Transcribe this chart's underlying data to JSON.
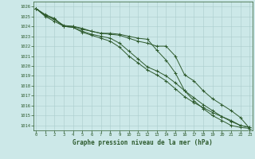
{
  "xlabel": "Graphe pression niveau de la mer (hPa)",
  "bg_color": "#cce8e8",
  "line_color": "#2d5a2d",
  "grid_color": "#aacccc",
  "ylim": [
    1013.5,
    1026.5
  ],
  "xlim": [
    -0.3,
    23.3
  ],
  "yticks": [
    1014,
    1015,
    1016,
    1017,
    1018,
    1019,
    1020,
    1021,
    1022,
    1023,
    1024,
    1025,
    1026
  ],
  "xticks": [
    0,
    1,
    2,
    3,
    4,
    5,
    6,
    7,
    8,
    9,
    10,
    11,
    12,
    13,
    14,
    15,
    16,
    17,
    18,
    19,
    20,
    21,
    22,
    23
  ],
  "series": [
    [
      1025.8,
      1025.2,
      1024.8,
      1024.0,
      1024.0,
      1023.8,
      1023.5,
      1023.3,
      1023.2,
      1023.1,
      1022.8,
      1022.5,
      1022.3,
      1022.0,
      1022.0,
      1021.0,
      1019.1,
      1018.5,
      1017.5,
      1016.7,
      1016.1,
      1015.5,
      1014.8,
      1013.7
    ],
    [
      1025.8,
      1025.1,
      1024.7,
      1024.0,
      1023.9,
      1023.5,
      1023.2,
      1023.0,
      1022.8,
      1022.3,
      1021.5,
      1020.7,
      1019.9,
      1019.5,
      1019.0,
      1018.3,
      1017.5,
      1016.8,
      1016.1,
      1015.5,
      1014.9,
      1014.4,
      1014.0,
      1013.8
    ],
    [
      1025.8,
      1025.0,
      1024.5,
      1024.0,
      1023.9,
      1023.4,
      1023.1,
      1022.8,
      1022.5,
      1021.9,
      1021.0,
      1020.3,
      1019.6,
      1019.1,
      1018.5,
      1017.7,
      1016.9,
      1016.3,
      1015.8,
      1015.3,
      1014.9,
      1014.5,
      1014.0,
      1013.8
    ],
    [
      1025.8,
      1025.1,
      1024.7,
      1024.1,
      1024.0,
      1023.7,
      1023.5,
      1023.3,
      1023.3,
      1023.2,
      1023.0,
      1022.8,
      1022.7,
      1021.6,
      1020.6,
      1019.3,
      1017.5,
      1016.5,
      1015.7,
      1015.0,
      1014.5,
      1014.0,
      1013.8,
      1013.7
    ]
  ]
}
